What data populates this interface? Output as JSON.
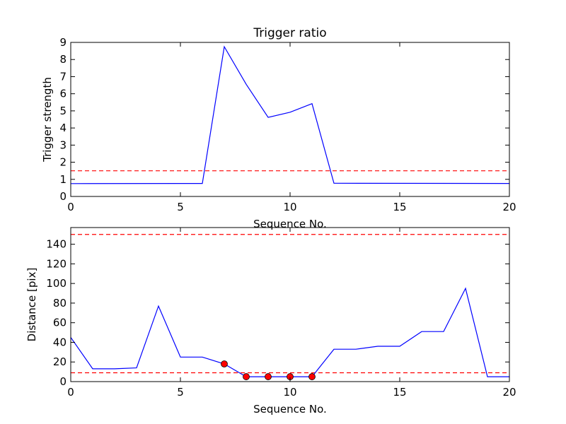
{
  "chart_data": [
    {
      "type": "line",
      "title": "Trigger ratio",
      "xlabel": "Sequence No.",
      "ylabel": "Trigger strength",
      "xlim": [
        0,
        20
      ],
      "ylim": [
        0,
        9
      ],
      "xticks": [
        "0",
        "5",
        "10",
        "15",
        "20"
      ],
      "yticks": [
        "0",
        "1",
        "2",
        "3",
        "4",
        "5",
        "6",
        "7",
        "8",
        "9"
      ],
      "grid": false,
      "series": [
        {
          "color": "#0000ff",
          "style": "solid",
          "x": [
            0,
            6,
            7,
            8,
            9,
            10,
            11,
            12,
            20
          ],
          "y": [
            0.75,
            0.76,
            8.75,
            6.55,
            4.62,
            4.92,
            5.42,
            0.77,
            0.76
          ]
        }
      ],
      "hlines": [
        {
          "y": 1.5,
          "color": "#ff0000",
          "style": "dashed"
        }
      ]
    },
    {
      "type": "line",
      "title": "",
      "xlabel": "Sequence No.",
      "ylabel": "Distance [pix]",
      "xlim": [
        0,
        20
      ],
      "ylim": [
        0,
        157
      ],
      "xticks": [
        "0",
        "5",
        "10",
        "15",
        "20"
      ],
      "yticks": [
        "0",
        "20",
        "40",
        "60",
        "80",
        "100",
        "120",
        "140"
      ],
      "grid": false,
      "series": [
        {
          "color": "#0000ff",
          "style": "solid",
          "x": [
            0,
            1,
            2,
            3,
            4,
            5,
            6,
            7,
            8,
            9,
            10,
            11,
            12,
            13,
            14,
            15,
            16,
            17,
            18,
            19,
            20
          ],
          "y": [
            45,
            13,
            13,
            14,
            77,
            25,
            25,
            18,
            5,
            5,
            5,
            5,
            33,
            33,
            36,
            36,
            51,
            51,
            95,
            5,
            5
          ]
        }
      ],
      "markers": {
        "color": "#ff0000",
        "x": [
          7,
          8,
          9,
          10,
          11
        ],
        "y": [
          18,
          5,
          5,
          5,
          5
        ]
      },
      "hlines": [
        {
          "y": 150,
          "color": "#ff0000",
          "style": "dashed"
        },
        {
          "y": 9,
          "color": "#ff0000",
          "style": "dashed"
        }
      ]
    }
  ]
}
